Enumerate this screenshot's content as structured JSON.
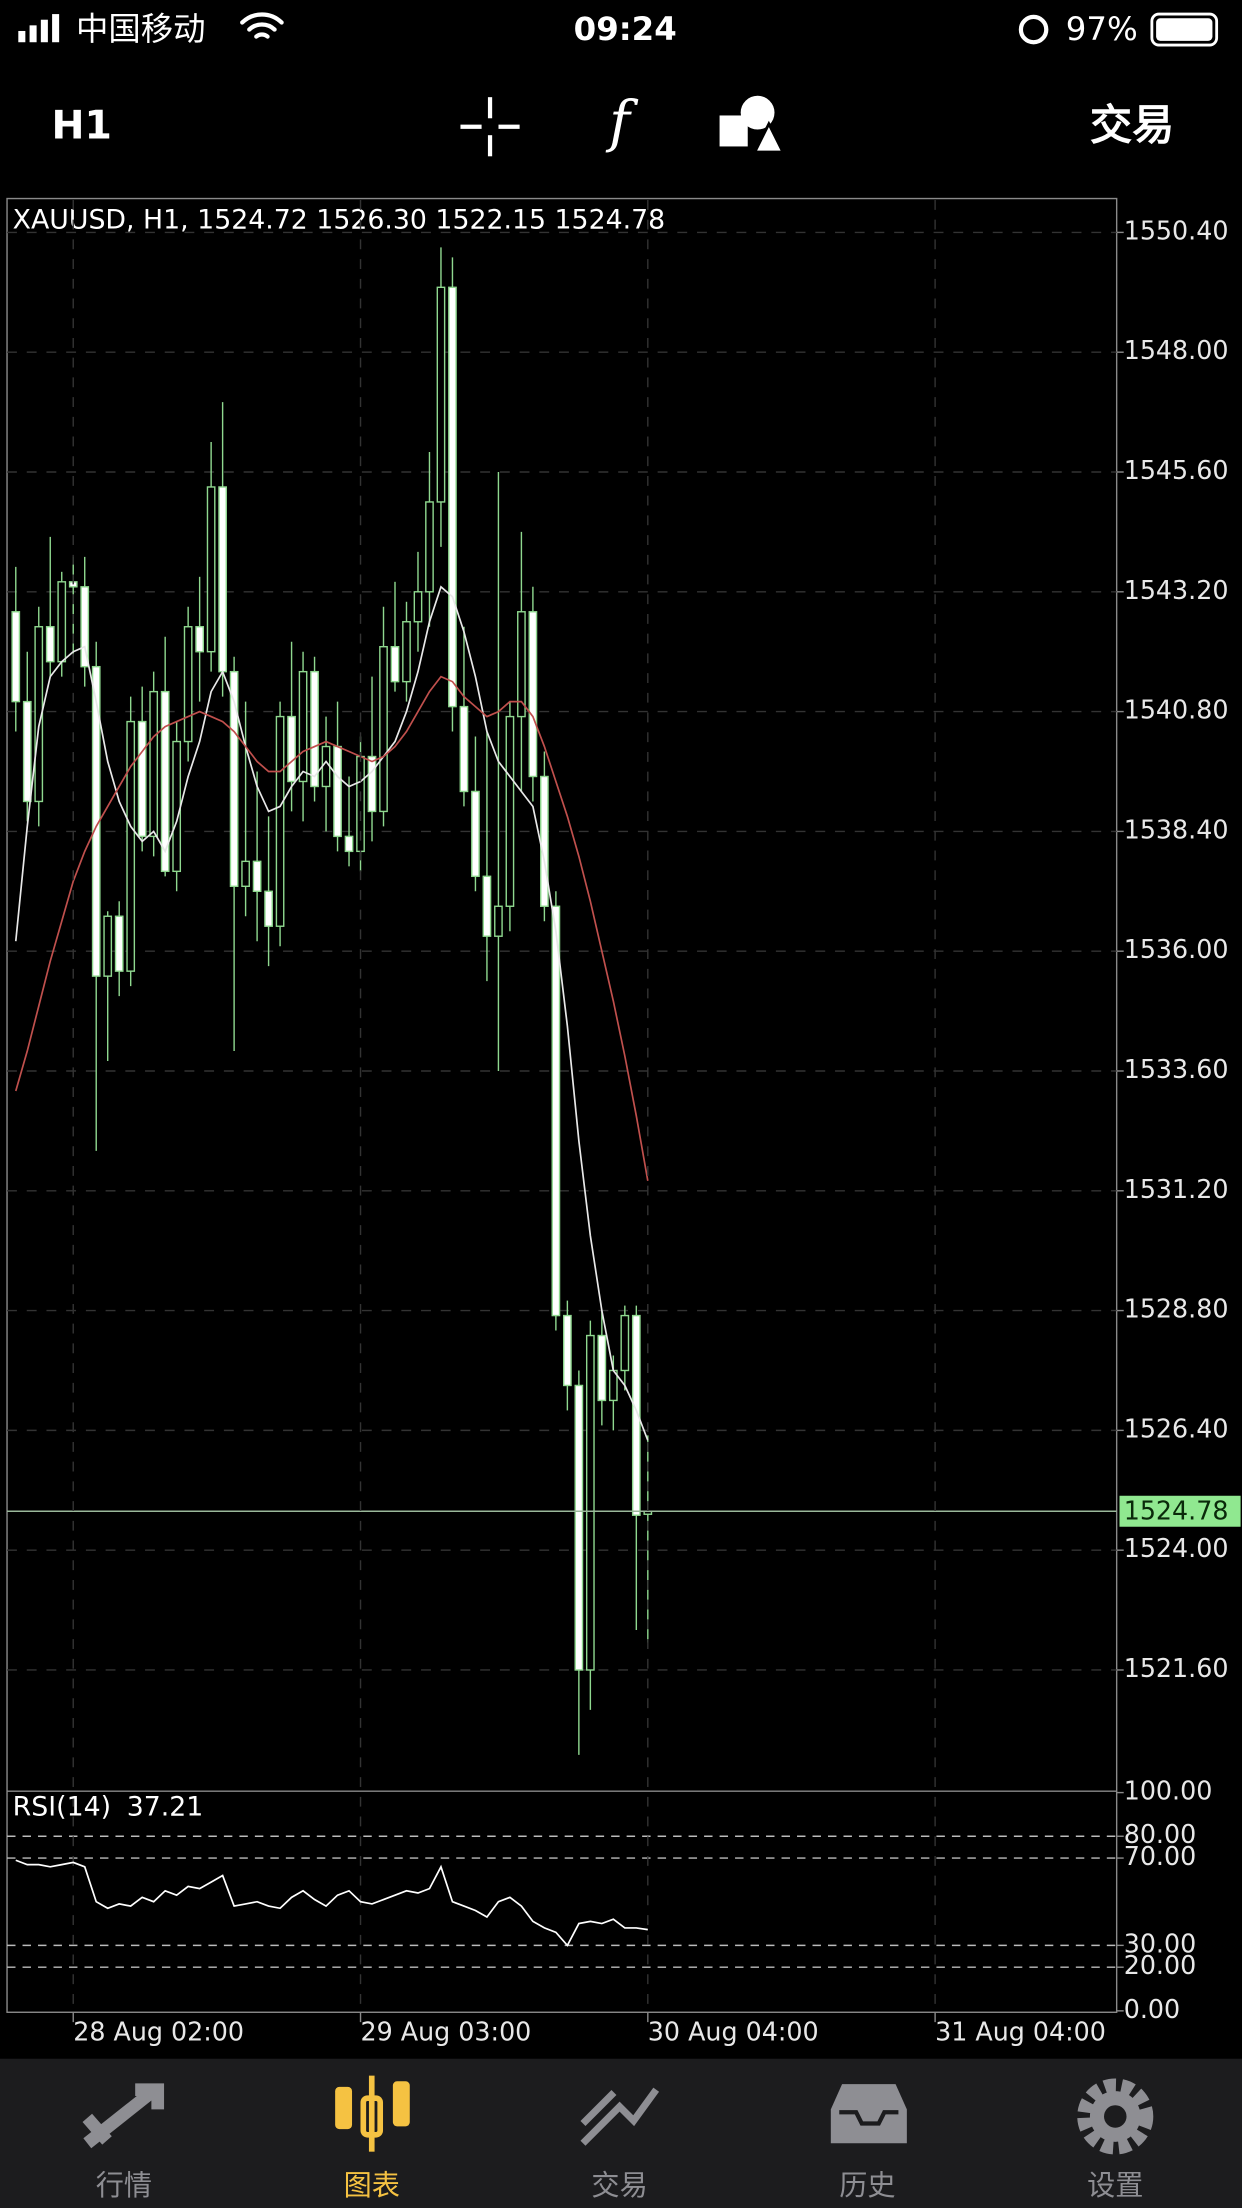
{
  "status_bar": {
    "carrier": "中国移动",
    "time": "09:24",
    "battery": "97%"
  },
  "toolbar": {
    "timeframe": "H1",
    "trade": "交易"
  },
  "tabs": [
    "行情",
    "图表",
    "交易",
    "历史",
    "设置"
  ],
  "chart_data": [
    {
      "type": "candlestick",
      "title": "XAUUSD, H1, 1524.72 1526.30 1522.15 1524.78",
      "xlim": [
        -0.76,
        95.8
      ],
      "ylim": [
        1519.2,
        1551.05
      ],
      "yticks": [
        {
          "value": 1550.4,
          "label": "1550.40"
        },
        {
          "value": 1548,
          "label": "1548.00"
        },
        {
          "value": 1545.6,
          "label": "1545.60"
        },
        {
          "value": 1543.2,
          "label": "1543.20"
        },
        {
          "value": 1540.8,
          "label": "1540.80"
        },
        {
          "value": 1538.4,
          "label": "1538.40"
        },
        {
          "value": 1536,
          "label": "1536.00"
        },
        {
          "value": 1533.6,
          "label": "1533.60"
        },
        {
          "value": 1531.2,
          "label": "1531.20"
        },
        {
          "value": 1528.8,
          "label": "1528.80"
        },
        {
          "value": 1526.4,
          "label": "1526.40"
        },
        {
          "value": 1524,
          "label": "1524.00"
        },
        {
          "value": 1521.6,
          "label": "1521.60"
        }
      ],
      "grid": true,
      "up_color": "#000000",
      "down_color": "#ffffff",
      "edge_color": "#8fd88f",
      "ohlc": [
        [
          1542.8,
          1543.7,
          1540.4,
          1541.0
        ],
        [
          1541.0,
          1542.0,
          1538.6,
          1539.0
        ],
        [
          1539.0,
          1542.9,
          1538.5,
          1542.5
        ],
        [
          1542.5,
          1544.3,
          1541.5,
          1541.8
        ],
        [
          1541.8,
          1543.6,
          1541.5,
          1543.4
        ],
        [
          1543.4,
          1543.9,
          1541.9,
          1543.3
        ],
        [
          1543.3,
          1543.9,
          1541.3,
          1541.7
        ],
        [
          1541.7,
          1542.2,
          1532.0,
          1535.5
        ],
        [
          1535.5,
          1536.8,
          1533.8,
          1536.7
        ],
        [
          1536.7,
          1537.0,
          1535.1,
          1535.6
        ],
        [
          1535.6,
          1541.1,
          1535.3,
          1540.6
        ],
        [
          1540.6,
          1541.3,
          1538.0,
          1538.3
        ],
        [
          1538.3,
          1541.6,
          1537.9,
          1541.2
        ],
        [
          1541.2,
          1542.3,
          1537.5,
          1537.6
        ],
        [
          1537.6,
          1540.6,
          1537.2,
          1540.2
        ],
        [
          1540.2,
          1542.9,
          1539.8,
          1542.5
        ],
        [
          1542.5,
          1543.5,
          1541.0,
          1542.0
        ],
        [
          1542.0,
          1546.2,
          1541.6,
          1545.3
        ],
        [
          1545.3,
          1547.0,
          1541.1,
          1541.6
        ],
        [
          1541.6,
          1541.9,
          1534.0,
          1537.3
        ],
        [
          1537.3,
          1541.0,
          1536.7,
          1537.8
        ],
        [
          1537.8,
          1539.6,
          1536.2,
          1537.2
        ],
        [
          1537.2,
          1538.7,
          1535.7,
          1536.5
        ],
        [
          1536.5,
          1541.0,
          1536.1,
          1540.7
        ],
        [
          1540.7,
          1542.2,
          1538.8,
          1539.4
        ],
        [
          1539.4,
          1542.0,
          1538.6,
          1541.6
        ],
        [
          1541.6,
          1541.9,
          1539.0,
          1539.3
        ],
        [
          1539.3,
          1540.7,
          1538.4,
          1540.1
        ],
        [
          1540.1,
          1541.0,
          1538.0,
          1538.3
        ],
        [
          1538.3,
          1539.5,
          1537.7,
          1538.0
        ],
        [
          1538.0,
          1540.3,
          1537.6,
          1539.9
        ],
        [
          1539.9,
          1541.5,
          1538.2,
          1538.8
        ],
        [
          1538.8,
          1542.9,
          1538.5,
          1542.1
        ],
        [
          1542.1,
          1543.4,
          1541.2,
          1541.4
        ],
        [
          1541.4,
          1543.0,
          1541.0,
          1542.6
        ],
        [
          1542.6,
          1544.0,
          1542.0,
          1543.2
        ],
        [
          1543.2,
          1546.0,
          1542.5,
          1545.0
        ],
        [
          1545.0,
          1550.1,
          1544.1,
          1549.3
        ],
        [
          1549.3,
          1549.9,
          1540.4,
          1540.9
        ],
        [
          1540.9,
          1542.5,
          1538.9,
          1539.2
        ],
        [
          1539.2,
          1540.3,
          1537.2,
          1537.5
        ],
        [
          1537.5,
          1540.4,
          1535.4,
          1536.3
        ],
        [
          1536.3,
          1545.6,
          1533.6,
          1536.9
        ],
        [
          1536.9,
          1541.0,
          1536.4,
          1540.7
        ],
        [
          1540.7,
          1544.4,
          1539.2,
          1542.8
        ],
        [
          1542.8,
          1543.3,
          1539.0,
          1539.5
        ],
        [
          1539.5,
          1540.0,
          1536.6,
          1536.9
        ],
        [
          1536.9,
          1537.2,
          1528.4,
          1528.7
        ],
        [
          1528.7,
          1529.0,
          1526.8,
          1527.3
        ],
        [
          1527.3,
          1527.6,
          1519.9,
          1521.6
        ],
        [
          1521.6,
          1528.6,
          1520.8,
          1528.3
        ],
        [
          1528.3,
          1528.8,
          1526.5,
          1527.0
        ],
        [
          1527.0,
          1527.9,
          1526.4,
          1527.6
        ],
        [
          1527.6,
          1528.9,
          1527.2,
          1528.7
        ],
        [
          1528.7,
          1528.9,
          1522.4,
          1524.7
        ],
        [
          1524.72,
          1526.3,
          1522.15,
          1524.78
        ]
      ],
      "series": [
        {
          "color": "#e8e8e8",
          "values": [
            1536.2,
            1538.5,
            1540.5,
            1541.5,
            1541.8,
            1542.0,
            1542.1,
            1541.0,
            1539.8,
            1539.0,
            1538.5,
            1538.2,
            1538.4,
            1538.0,
            1538.6,
            1539.5,
            1540.2,
            1541.2,
            1541.6,
            1541.0,
            1540.1,
            1539.3,
            1538.8,
            1538.9,
            1539.3,
            1539.6,
            1539.5,
            1539.8,
            1539.5,
            1539.3,
            1539.4,
            1539.6,
            1539.9,
            1540.2,
            1540.8,
            1541.6,
            1542.6,
            1543.3,
            1543.1,
            1542.4,
            1541.5,
            1540.4,
            1539.8,
            1539.5,
            1539.2,
            1538.9,
            1537.8,
            1536.4,
            1534.5,
            1532.2,
            1530.3,
            1528.8,
            1527.6,
            1527.3,
            1526.8,
            1526.2
          ]
        },
        {
          "color": "#c0504d",
          "values": [
            1533.2,
            1534.0,
            1534.9,
            1535.8,
            1536.6,
            1537.4,
            1538.0,
            1538.5,
            1538.9,
            1539.3,
            1539.7,
            1540.0,
            1540.3,
            1540.5,
            1540.6,
            1540.7,
            1540.8,
            1540.7,
            1540.6,
            1540.4,
            1540.1,
            1539.8,
            1539.6,
            1539.6,
            1539.8,
            1540.0,
            1540.1,
            1540.2,
            1540.1,
            1540.0,
            1539.9,
            1539.8,
            1539.9,
            1540.1,
            1540.4,
            1540.8,
            1541.2,
            1541.5,
            1541.4,
            1541.1,
            1540.9,
            1540.7,
            1540.8,
            1541.0,
            1541.0,
            1540.7,
            1540.1,
            1539.4,
            1538.7,
            1537.9,
            1537.0,
            1536.0,
            1535.0,
            1533.9,
            1532.7,
            1531.4
          ]
        }
      ],
      "current_price": 1524.78,
      "current_color": "#90e890"
    },
    {
      "type": "line",
      "title": "RSI(14)",
      "xlim": [
        -0.76,
        95.8
      ],
      "ylim": [
        0,
        100
      ],
      "yticks": [
        {
          "value": 100,
          "label": "100.00"
        },
        {
          "value": 80,
          "label": "80.00"
        },
        {
          "value": 70,
          "label": "70.00"
        },
        {
          "value": 30,
          "label": "30.00"
        },
        {
          "value": 20,
          "label": "20.00"
        },
        {
          "value": 0,
          "label": "0.00"
        }
      ],
      "xticks": [
        {
          "value": 5,
          "label": "28 Aug 02:00"
        },
        {
          "value": 30,
          "label": "29 Aug 03:00"
        },
        {
          "value": 55,
          "label": "30 Aug 04:00"
        },
        {
          "value": 80,
          "label": "31 Aug 04:00"
        }
      ],
      "series": [
        {
          "color": "#ffffff",
          "values": [
            69,
            67,
            67,
            66,
            67,
            68,
            66,
            50,
            47,
            49,
            48,
            52,
            50,
            55,
            53,
            57,
            56,
            59,
            62,
            48,
            49,
            50,
            48,
            47,
            52,
            55,
            51,
            48,
            53,
            55,
            50,
            49,
            51,
            53,
            55,
            54,
            56,
            66,
            50,
            48,
            46,
            43,
            50,
            52,
            48,
            41,
            38,
            36,
            30,
            40,
            41,
            40,
            42,
            38,
            38,
            37.21
          ]
        }
      ]
    }
  ]
}
